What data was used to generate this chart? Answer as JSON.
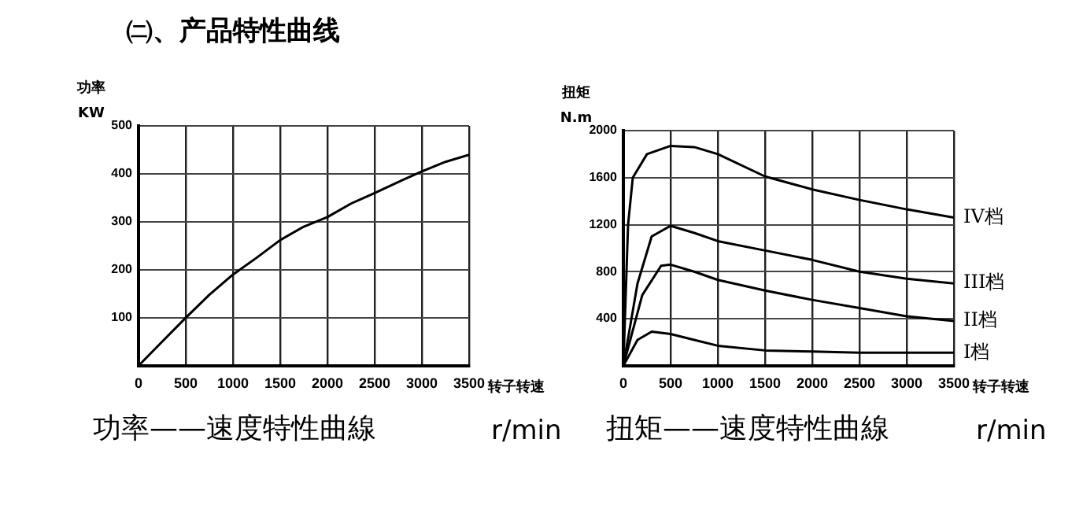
{
  "chart_data": [
    {
      "type": "line",
      "title": "功率——速度特性曲線",
      "xlabel": "转子转速",
      "ylabel": "功率\nKW",
      "annotations": [
        "㈡、产品特性曲线",
        "r/min"
      ],
      "legend": false,
      "grid": true,
      "marker": "none",
      "xlim": [
        0,
        3500
      ],
      "xticks": [
        0,
        500,
        1000,
        1500,
        2000,
        2500,
        3000,
        3500
      ],
      "ylim": [
        0,
        500
      ],
      "yticks": [
        100,
        200,
        300,
        400,
        500
      ],
      "series": [
        {
          "color": "#000000",
          "x": [
            0,
            250,
            500,
            750,
            1000,
            1250,
            1500,
            1750,
            2000,
            2250,
            2500,
            2750,
            3000,
            3250,
            3500
          ],
          "values": [
            0,
            50,
            100,
            148,
            190,
            225,
            262,
            290,
            310,
            338,
            360,
            383,
            405,
            425,
            440
          ]
        }
      ]
    },
    {
      "type": "line",
      "title": "扭矩——速度特性曲線",
      "xlabel": "转子转速",
      "ylabel": "扭矩\nN.m",
      "annotations": [
        "r/min"
      ],
      "legend": false,
      "grid": true,
      "marker": "none",
      "xlim": [
        0,
        3500
      ],
      "xticks": [
        0,
        500,
        1000,
        1500,
        2000,
        2500,
        3000,
        3500
      ],
      "ylim": [
        0,
        2000
      ],
      "yticks": [
        400,
        800,
        1200,
        1600,
        2000
      ],
      "series": [
        {
          "name": "IV档",
          "color": "#000000",
          "x": [
            0,
            50,
            100,
            250,
            500,
            750,
            1000,
            1500,
            2000,
            2500,
            3000,
            3500
          ],
          "values": [
            0,
            1200,
            1600,
            1800,
            1870,
            1860,
            1800,
            1610,
            1500,
            1410,
            1330,
            1260
          ]
        },
        {
          "name": "III档",
          "color": "#000000",
          "x": [
            0,
            150,
            300,
            500,
            750,
            1000,
            1500,
            2000,
            2500,
            3000,
            3500
          ],
          "values": [
            0,
            700,
            1100,
            1190,
            1130,
            1060,
            980,
            900,
            800,
            740,
            700
          ]
        },
        {
          "name": "II档",
          "color": "#000000",
          "x": [
            0,
            200,
            400,
            500,
            750,
            1000,
            1500,
            2000,
            2500,
            3000,
            3500
          ],
          "values": [
            0,
            600,
            850,
            860,
            800,
            730,
            640,
            560,
            490,
            420,
            380
          ]
        },
        {
          "name": "I档",
          "color": "#000000",
          "x": [
            0,
            150,
            300,
            500,
            750,
            1000,
            1500,
            2000,
            2500,
            3000,
            3500
          ],
          "values": [
            0,
            220,
            290,
            270,
            220,
            170,
            130,
            120,
            110,
            110,
            110
          ]
        }
      ]
    }
  ]
}
